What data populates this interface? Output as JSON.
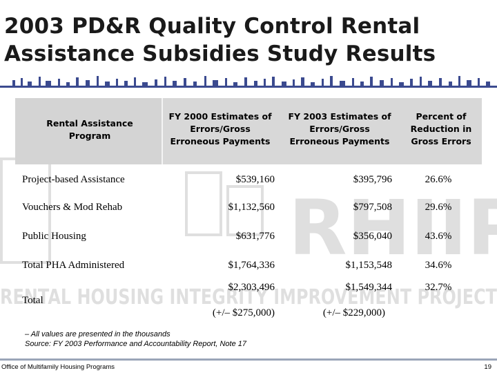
{
  "slide": {
    "title_line1": "2003 PD&R Quality Control Rental",
    "title_line2": "Assistance Subsidies Study Results",
    "accent_color": "#3b4a8f"
  },
  "table": {
    "headers": [
      [
        "Rental Assistance",
        "Program"
      ],
      [
        "FY 2000 Estimates of",
        "Errors/Gross",
        "Erroneous Payments"
      ],
      [
        "FY 2003 Estimates of",
        "Errors/Gross",
        "Erroneous Payments"
      ],
      [
        "Percent of",
        "Reduction in",
        "Gross Errors"
      ]
    ],
    "rows": [
      {
        "program": "Project-based Assistance",
        "fy2000": "$539,160",
        "fy2003": "$395,796",
        "pct": "26.6%"
      },
      {
        "program": "Vouchers & Mod Rehab",
        "fy2000": "$1,132,560",
        "fy2003": "$797,508",
        "pct": "29.6%"
      },
      {
        "program": "Public Housing",
        "fy2000": "$631,776",
        "fy2003": "$356,040",
        "pct": "43.6%"
      },
      {
        "program": "Total PHA Administered",
        "fy2000": "$1,764,336",
        "fy2003": "$1,153,548",
        "pct": "34.6%"
      },
      {
        "program": "Total",
        "fy2000": "$2,303,496",
        "fy2003": "$1,549,344",
        "pct": "32.7%",
        "fy2000_note": "(+/– $275,000)",
        "fy2003_note": "(+/– $229,000)"
      }
    ]
  },
  "notes": {
    "line1": "– All values are presented in the thousands",
    "line2": "Source: FY 2003 Performance and Accountability Report, Note 17"
  },
  "footer": {
    "left": "Office of Multifamily Housing Programs",
    "page_number": "19"
  },
  "watermark": {
    "word": "RHIIP",
    "line": "RENTAL HOUSING INTEGRITY IMPROVEMENT PROJECT"
  }
}
